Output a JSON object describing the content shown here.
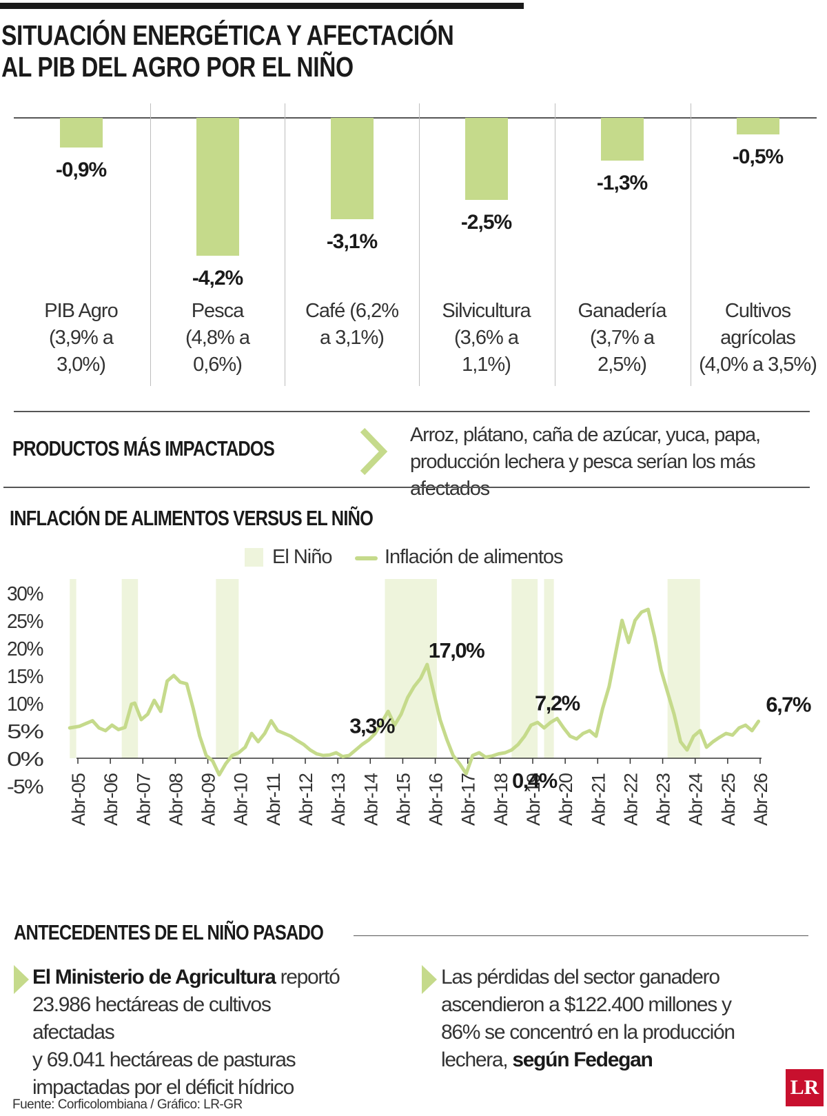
{
  "title_line1": "SITUACIÓN ENERGÉTICA Y AFECTACIÓN",
  "title_line2": "AL PIB DEL AGRO POR EL NIÑO",
  "colors": {
    "accent": "#c5da8b",
    "nino_band": "#eef4dc",
    "text": "#1a1a1a",
    "logo": "#c8102e"
  },
  "bars": [
    {
      "value": -0.9,
      "label_value": "-0,9%",
      "label_lines": [
        "PIB Agro",
        "(3,9% a",
        "3,0%)"
      ]
    },
    {
      "value": -4.2,
      "label_value": "-4,2%",
      "label_lines": [
        "Pesca",
        "(4,8% a",
        "0,6%)"
      ]
    },
    {
      "value": -3.1,
      "label_value": "-3,1%",
      "label_lines": [
        "Café (6,2%",
        "a 3,1%)",
        ""
      ]
    },
    {
      "value": -2.5,
      "label_value": "-2,5%",
      "label_lines": [
        "Silvicultura",
        "(3,6% a",
        "1,1%)"
      ]
    },
    {
      "value": -1.3,
      "label_value": "-1,3%",
      "label_lines": [
        "Ganadería",
        "(3,7% a",
        "2,5%)"
      ]
    },
    {
      "value": -0.5,
      "label_value": "-0,5%",
      "label_lines": [
        "Cultivos",
        "agrícolas",
        "(4,0% a 3,5%)"
      ]
    }
  ],
  "productos": {
    "heading": "PRODUCTOS MÁS IMPACTADOS",
    "line1": "Arroz, plátano, caña de azúcar, yuca, papa,",
    "line2": "producción lechera y pesca serían los más afectados"
  },
  "chart_heading": "INFLACIÓN DE ALIMENTOS VERSUS EL NIÑO",
  "legend": {
    "nino": "El Niño",
    "inflacion": "Inflación de alimentos"
  },
  "chart_data": {
    "type": "line",
    "title": "INFLACIÓN DE ALIMENTOS VERSUS EL NIÑO",
    "xlabel": "",
    "ylabel": "",
    "ylim": [
      -5,
      30
    ],
    "xlim": [
      2005.2,
      2026.3
    ],
    "yticks": [
      30,
      25,
      20,
      15,
      10,
      5,
      0,
      -5
    ],
    "ytick_labels": [
      "30%",
      "25%",
      "20%",
      "15%",
      "10%",
      "5%",
      "0%",
      "-5%"
    ],
    "xtick_labels": [
      "Abr-05",
      "Abr-06",
      "Abr-07",
      "Abr-08",
      "Abr-09",
      "Abr-10",
      "Abr-11",
      "Abr-12",
      "Abr-13",
      "Abr-14",
      "Abr-15",
      "Abr-16",
      "Abr-17",
      "Abr-18",
      "Abr-19",
      "Abr-20",
      "Abr-21",
      "Abr-22",
      "Abr-23",
      "Abr-24",
      "Abr-25",
      "Abr-26"
    ],
    "xtick_years": [
      2005.25,
      2006.25,
      2007.25,
      2008.25,
      2009.25,
      2010.25,
      2011.25,
      2012.25,
      2013.25,
      2014.25,
      2015.25,
      2016.25,
      2017.25,
      2018.25,
      2019.25,
      2020.25,
      2021.25,
      2022.25,
      2023.25,
      2024.25,
      2025.25,
      2026.25
    ],
    "nino_periods": [
      [
        2005.0,
        2005.2
      ],
      [
        2006.6,
        2007.1
      ],
      [
        2009.5,
        2010.2
      ],
      [
        2014.7,
        2016.3
      ],
      [
        2018.6,
        2019.4
      ],
      [
        2019.6,
        2019.9
      ],
      [
        2023.4,
        2024.4
      ]
    ],
    "series": [
      {
        "name": "Inflación de alimentos",
        "x": [
          2005.0,
          2005.3,
          2005.5,
          2005.7,
          2005.9,
          2006.1,
          2006.3,
          2006.5,
          2006.7,
          2006.9,
          2007.0,
          2007.2,
          2007.4,
          2007.6,
          2007.8,
          2008.0,
          2008.2,
          2008.4,
          2008.6,
          2008.8,
          2009.0,
          2009.2,
          2009.4,
          2009.6,
          2009.8,
          2010.0,
          2010.2,
          2010.4,
          2010.6,
          2010.8,
          2011.0,
          2011.2,
          2011.4,
          2011.6,
          2011.8,
          2012.0,
          2012.2,
          2012.4,
          2012.6,
          2012.8,
          2013.0,
          2013.2,
          2013.4,
          2013.6,
          2013.8,
          2014.0,
          2014.2,
          2014.4,
          2014.6,
          2014.8,
          2015.0,
          2015.2,
          2015.4,
          2015.6,
          2015.8,
          2016.0,
          2016.2,
          2016.4,
          2016.6,
          2016.8,
          2017.0,
          2017.2,
          2017.4,
          2017.6,
          2017.8,
          2018.0,
          2018.2,
          2018.4,
          2018.6,
          2018.8,
          2019.0,
          2019.2,
          2019.4,
          2019.6,
          2019.8,
          2020.0,
          2020.2,
          2020.4,
          2020.6,
          2020.8,
          2021.0,
          2021.2,
          2021.4,
          2021.6,
          2021.8,
          2022.0,
          2022.2,
          2022.4,
          2022.6,
          2022.8,
          2023.0,
          2023.2,
          2023.4,
          2023.6,
          2023.8,
          2024.0,
          2024.2,
          2024.4,
          2024.6,
          2024.8,
          2025.0,
          2025.2,
          2025.4,
          2025.6,
          2025.8,
          2026.0,
          2026.2
        ],
        "values": [
          5.5,
          5.8,
          6.3,
          6.8,
          5.5,
          5.0,
          6.0,
          5.2,
          5.6,
          9.8,
          10.0,
          7.0,
          8.0,
          10.5,
          8.5,
          14.0,
          15.0,
          13.8,
          13.5,
          9.0,
          4.0,
          0.5,
          -0.5,
          -3.0,
          -1.0,
          0.5,
          1.0,
          2.0,
          4.5,
          3.0,
          4.5,
          6.8,
          5.0,
          4.5,
          4.0,
          3.2,
          2.5,
          1.5,
          0.8,
          0.5,
          0.6,
          1.0,
          0.3,
          0.5,
          1.5,
          2.5,
          3.3,
          4.5,
          6.5,
          8.5,
          6.0,
          8.0,
          11.0,
          13.0,
          14.5,
          17.0,
          12.0,
          7.0,
          3.5,
          0.5,
          -1.0,
          -2.8,
          0.5,
          1.0,
          0.2,
          0.4,
          0.8,
          1.0,
          1.5,
          2.5,
          4.0,
          6.0,
          6.5,
          5.5,
          6.5,
          7.2,
          5.5,
          4.0,
          3.5,
          4.5,
          5.0,
          4.0,
          9.0,
          13.0,
          19.0,
          25.0,
          21.0,
          25.0,
          26.5,
          27.0,
          22.0,
          16.0,
          12.0,
          8.0,
          3.0,
          1.5,
          4.0,
          5.0,
          2.0,
          3.0,
          3.8,
          4.5,
          4.2,
          5.5,
          6.0,
          5.0,
          6.7
        ]
      }
    ],
    "annotations": [
      {
        "x": 2016.0,
        "y": 17.0,
        "text": "17,0%"
      },
      {
        "x": 2014.3,
        "y": 3.3,
        "text": "3,3%"
      },
      {
        "x": 2019.3,
        "y": 0.4,
        "text": "0,4%"
      },
      {
        "x": 2020.0,
        "y": 7.2,
        "text": "7,2%"
      },
      {
        "x": 2026.2,
        "y": 6.7,
        "text": "6,7%"
      }
    ],
    "grid": false,
    "legend_position": "top-center"
  },
  "antecedentes": {
    "heading": "ANTECEDENTES DE EL NIÑO PASADO",
    "left": {
      "bold": "El Ministerio de Agricultura",
      "rest1": " reportó",
      "line2": "23.986 hectáreas de cultivos afectadas",
      "line3": "y 69.041 hectáreas de pasturas",
      "line4": "impactadas por el déficit hídrico"
    },
    "right": {
      "line1": "Las pérdidas del sector ganadero",
      "line2": "ascendieron a $122.400 millones y",
      "line3": "86% se concentró en la producción",
      "line4_pre": "lechera, ",
      "line4_bold": "según Fedegan"
    }
  },
  "source": "Fuente: Corficolombiana / Gráfico: LR-GR",
  "logo": "LR"
}
